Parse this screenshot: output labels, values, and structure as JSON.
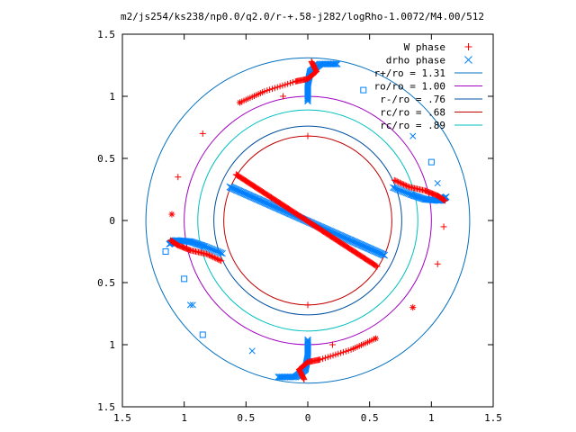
{
  "chart_data": {
    "type": "scatter",
    "title": "m2/js254/ks238/np0.0/q2.0/r-+.58-j282/logRho-1.0072/M4.00/512",
    "xlabel": "",
    "ylabel": "",
    "xlim": [
      -1.5,
      1.5
    ],
    "ylim": [
      -1.5,
      1.5
    ],
    "x_tick_labels": [
      "1.5",
      "1",
      "0.5",
      "0",
      "0.5",
      "1",
      "1.5"
    ],
    "x_tick_values": [
      -1.5,
      -1,
      -0.5,
      0,
      0.5,
      1,
      1.5
    ],
    "y_tick_labels": [
      "1.5",
      "1",
      "0.5",
      "0",
      "0.5",
      "1",
      "1.5"
    ],
    "y_tick_values": [
      1.5,
      1,
      0.5,
      0,
      -0.5,
      -1,
      -1.5
    ],
    "legend_position": "top-right",
    "grid": false,
    "series": [
      {
        "name": "W phase",
        "marker": "plus",
        "color": "#ff0000"
      },
      {
        "name": "drho phase",
        "marker": "cross",
        "color": "#0080ff"
      },
      {
        "name": "r+/ro = 1.31",
        "type": "circle",
        "radius": 1.31,
        "color": "#0070c0"
      },
      {
        "name": "ro/ro = 1.00",
        "type": "circle",
        "radius": 1.0,
        "color": "#a000c0"
      },
      {
        "name": "r-/ro = .76",
        "type": "circle",
        "radius": 0.76,
        "color": "#0050a0"
      },
      {
        "name": "rc/ro = .68",
        "type": "circle",
        "radius": 0.68,
        "color": "#c00000"
      },
      {
        "name": "rc/ro = .89",
        "type": "circle",
        "radius": 0.89,
        "color": "#00c0c0"
      }
    ],
    "inner_lines": {
      "w_phase": {
        "from": [
          -0.58,
          0.37
        ],
        "to": [
          0.56,
          -0.37
        ]
      },
      "drho_phase": {
        "from": [
          -0.63,
          0.27
        ],
        "to": [
          0.62,
          -0.28
        ]
      }
    },
    "arm_curves": {
      "w_phase": [
        {
          "points": [
            [
              0.03,
              1.28
            ],
            [
              0.07,
              1.2
            ],
            [
              0.0,
              1.14
            ],
            [
              -0.1,
              1.12
            ],
            [
              -0.35,
              1.04
            ],
            [
              -0.55,
              0.95
            ]
          ]
        },
        {
          "points": [
            [
              -0.03,
              -1.28
            ],
            [
              -0.07,
              -1.2
            ],
            [
              0.0,
              -1.14
            ],
            [
              0.1,
              -1.12
            ],
            [
              0.35,
              -1.04
            ],
            [
              0.55,
              -0.95
            ]
          ]
        },
        {
          "points": [
            [
              -1.11,
              -0.16
            ],
            [
              -1.05,
              -0.2
            ],
            [
              -0.95,
              -0.24
            ],
            [
              -0.82,
              -0.27
            ],
            [
              -0.69,
              -0.33
            ]
          ]
        },
        {
          "points": [
            [
              1.11,
              0.16
            ],
            [
              1.05,
              0.2
            ],
            [
              0.95,
              0.24
            ],
            [
              0.82,
              0.27
            ],
            [
              0.69,
              0.33
            ]
          ]
        }
      ],
      "drho_phase": [
        {
          "points": [
            [
              0.0,
              0.96
            ],
            [
              0.0,
              1.1
            ],
            [
              0.02,
              1.2
            ],
            [
              0.1,
              1.26
            ],
            [
              0.25,
              1.26
            ]
          ]
        },
        {
          "points": [
            [
              0.0,
              -0.96
            ],
            [
              0.0,
              -1.1
            ],
            [
              -0.02,
              -1.2
            ],
            [
              -0.1,
              -1.26
            ],
            [
              -0.25,
              -1.26
            ]
          ]
        },
        {
          "points": [
            [
              -1.12,
              -0.19
            ],
            [
              -1.07,
              -0.16
            ],
            [
              -0.95,
              -0.17
            ],
            [
              -0.83,
              -0.21
            ],
            [
              -0.68,
              -0.27
            ]
          ]
        },
        {
          "points": [
            [
              1.12,
              0.19
            ],
            [
              1.07,
              0.16
            ],
            [
              0.95,
              0.17
            ],
            [
              0.83,
              0.21
            ],
            [
              0.68,
              0.27
            ]
          ]
        }
      ]
    },
    "scatter_points": {
      "w_phase": [
        [
          -0.2,
          1.0
        ],
        [
          -0.55,
          0.95
        ],
        [
          -0.85,
          0.7
        ],
        [
          -1.05,
          0.35
        ],
        [
          -1.1,
          0.05
        ],
        [
          0.0,
          0.68
        ],
        [
          0.0,
          -0.68
        ],
        [
          0.85,
          -0.7
        ],
        [
          1.05,
          -0.35
        ],
        [
          1.1,
          -0.05
        ],
        [
          0.55,
          -0.95
        ],
        [
          0.2,
          -1.0
        ]
      ],
      "drho_phase": [
        [
          0.45,
          1.05
        ],
        [
          0.85,
          0.68
        ],
        [
          1.0,
          0.47
        ],
        [
          1.05,
          0.3
        ],
        [
          -1.0,
          -0.47
        ],
        [
          -0.95,
          -0.68
        ],
        [
          -0.85,
          -0.92
        ],
        [
          -0.45,
          -1.05
        ],
        [
          -1.15,
          -0.25
        ],
        [
          -0.93,
          -0.68
        ]
      ]
    }
  }
}
